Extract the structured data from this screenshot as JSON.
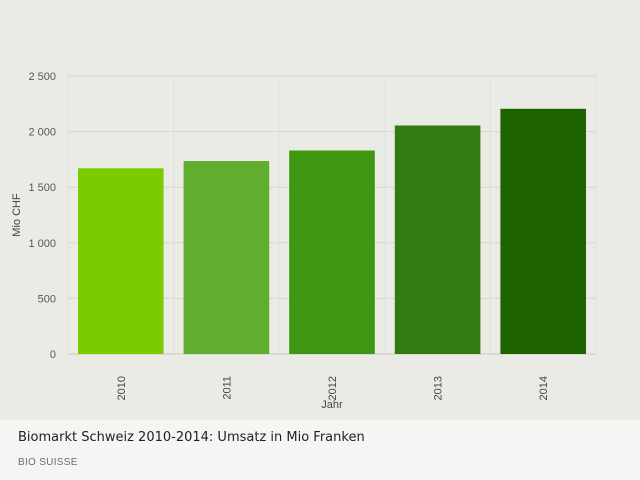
{
  "caption": {
    "title": "Biomarkt Schweiz 2010-2014: Umsatz in Mio Franken",
    "source": "BIO SUISSE"
  },
  "chart_data": {
    "type": "bar",
    "categories": [
      "2010",
      "2011",
      "2012",
      "2013",
      "2014"
    ],
    "values": [
      1670,
      1735,
      1830,
      2055,
      2205
    ],
    "xlabel": "Jahr",
    "ylabel": "Mio CHF",
    "ylim": [
      0,
      2500
    ],
    "yticks": [
      0,
      500,
      1000,
      1500,
      2000,
      2500
    ],
    "ytick_labels": [
      "0",
      "500",
      "1 000",
      "1 500",
      "2 000",
      "2 500"
    ],
    "bar_colors": [
      "#7ccb00",
      "#5fae2f",
      "#3f9610",
      "#327b10",
      "#1d6400"
    ],
    "grid": true,
    "legend": "none"
  }
}
